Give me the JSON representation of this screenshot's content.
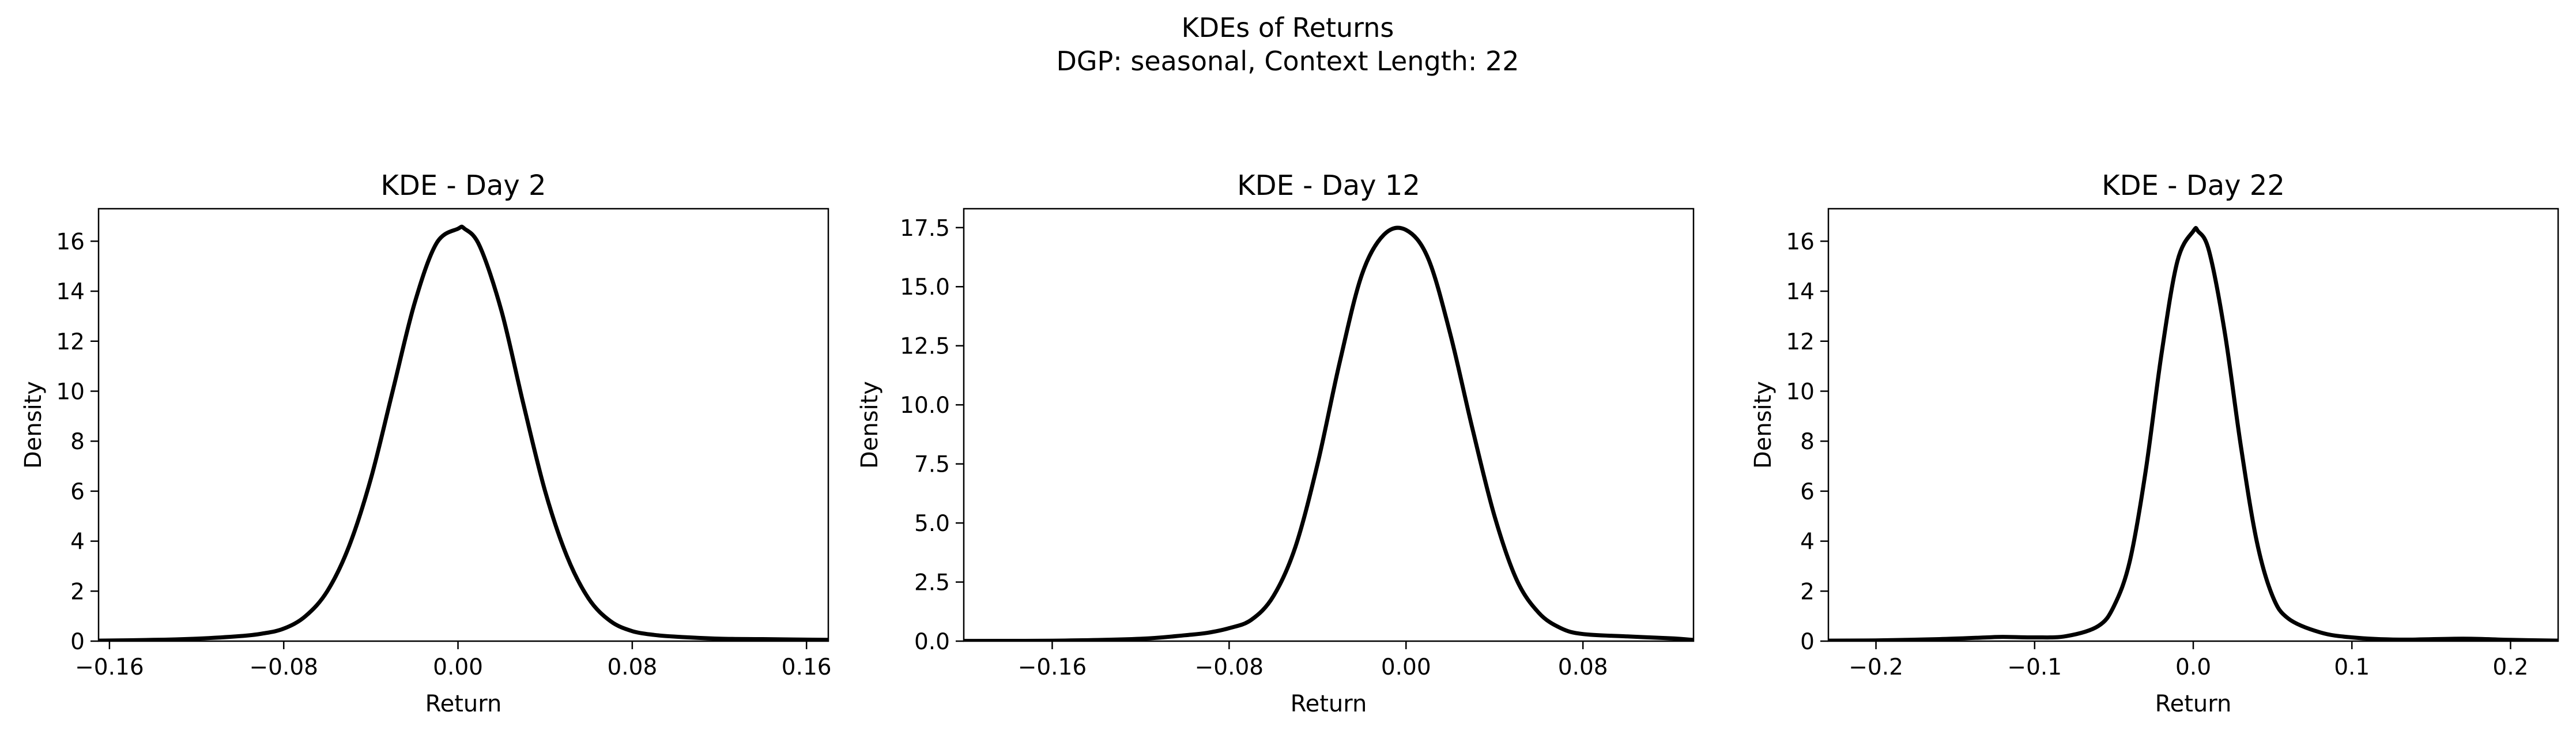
{
  "figure": {
    "title_line1": "KDEs of Returns",
    "title_line2": "DGP: seasonal, Context Length: 22",
    "line_color": "#000000"
  },
  "chart_data": [
    {
      "type": "line",
      "title": "KDE - Day 2",
      "xlabel": "Return",
      "ylabel": "Density",
      "xlim": [
        -0.165,
        0.17
      ],
      "ylim": [
        0,
        17.3
      ],
      "xticks": [
        -0.16,
        -0.08,
        0.0,
        0.08,
        0.16
      ],
      "xtick_labels": [
        "−0.16",
        "−0.08",
        "0.00",
        "0.08",
        "0.16"
      ],
      "yticks": [
        0,
        2,
        4,
        6,
        8,
        10,
        12,
        14,
        16
      ],
      "ytick_labels": [
        "0",
        "2",
        "4",
        "6",
        "8",
        "10",
        "12",
        "14",
        "16"
      ],
      "grid": false,
      "series": [
        {
          "x": [
            -0.165,
            -0.14,
            -0.12,
            -0.1,
            -0.09,
            -0.08,
            -0.07,
            -0.06,
            -0.05,
            -0.04,
            -0.03,
            -0.02,
            -0.01,
            0.0,
            0.003,
            0.01,
            0.02,
            0.03,
            0.04,
            0.05,
            0.06,
            0.07,
            0.08,
            0.09,
            0.1,
            0.12,
            0.14,
            0.17
          ],
          "y": [
            0.02,
            0.05,
            0.1,
            0.2,
            0.3,
            0.5,
            1.0,
            2.0,
            3.8,
            6.5,
            10.0,
            13.5,
            15.9,
            16.5,
            16.5,
            15.8,
            13.2,
            9.5,
            6.0,
            3.4,
            1.7,
            0.8,
            0.4,
            0.25,
            0.18,
            0.1,
            0.08,
            0.05
          ]
        }
      ]
    },
    {
      "type": "line",
      "title": "KDE - Day 12",
      "xlabel": "Return",
      "ylabel": "Density",
      "xlim": [
        -0.2,
        0.13
      ],
      "ylim": [
        0,
        18.3
      ],
      "xticks": [
        -0.16,
        -0.08,
        0.0,
        0.08
      ],
      "xtick_labels": [
        "−0.16",
        "−0.08",
        "0.00",
        "0.08"
      ],
      "yticks": [
        0,
        2.5,
        5,
        7.5,
        10,
        12.5,
        15,
        17.5
      ],
      "ytick_labels": [
        "0.0",
        "2.5",
        "5.0",
        "7.5",
        "10.0",
        "12.5",
        "15.0",
        "17.5"
      ],
      "grid": false,
      "series": [
        {
          "x": [
            -0.2,
            -0.16,
            -0.12,
            -0.1,
            -0.09,
            -0.08,
            -0.07,
            -0.06,
            -0.05,
            -0.04,
            -0.03,
            -0.02,
            -0.01,
            0.0,
            0.01,
            0.02,
            0.03,
            0.04,
            0.05,
            0.06,
            0.07,
            0.08,
            0.1,
            0.12,
            0.13
          ],
          "y": [
            0.01,
            0.02,
            0.1,
            0.25,
            0.35,
            0.55,
            0.9,
            1.9,
            4.0,
            7.5,
            11.8,
            15.5,
            17.2,
            17.4,
            16.2,
            13.0,
            9.0,
            5.3,
            2.6,
            1.2,
            0.55,
            0.3,
            0.2,
            0.12,
            0.05
          ]
        }
      ]
    },
    {
      "type": "line",
      "title": "KDE - Day 22",
      "xlabel": "Return",
      "ylabel": "Density",
      "xlim": [
        -0.23,
        0.23
      ],
      "ylim": [
        0,
        17.3
      ],
      "xticks": [
        -0.2,
        -0.1,
        0.0,
        0.1,
        0.2
      ],
      "xtick_labels": [
        "−0.2",
        "−0.1",
        "0.0",
        "0.1",
        "0.2"
      ],
      "yticks": [
        0,
        2,
        4,
        6,
        8,
        10,
        12,
        14,
        16
      ],
      "ytick_labels": [
        "0",
        "2",
        "4",
        "6",
        "8",
        "10",
        "12",
        "14",
        "16"
      ],
      "grid": false,
      "series": [
        {
          "x": [
            -0.23,
            -0.2,
            -0.16,
            -0.13,
            -0.12,
            -0.1,
            -0.08,
            -0.06,
            -0.05,
            -0.04,
            -0.03,
            -0.02,
            -0.01,
            0.0,
            0.003,
            0.01,
            0.02,
            0.03,
            0.04,
            0.05,
            0.06,
            0.08,
            0.1,
            0.13,
            0.17,
            0.2,
            0.23
          ],
          "y": [
            0.02,
            0.03,
            0.08,
            0.15,
            0.17,
            0.15,
            0.2,
            0.6,
            1.4,
            3.2,
            6.8,
            11.5,
            15.2,
            16.4,
            16.4,
            15.6,
            12.3,
            7.8,
            4.0,
            1.8,
            0.9,
            0.35,
            0.15,
            0.06,
            0.1,
            0.05,
            0.02
          ]
        }
      ]
    }
  ]
}
